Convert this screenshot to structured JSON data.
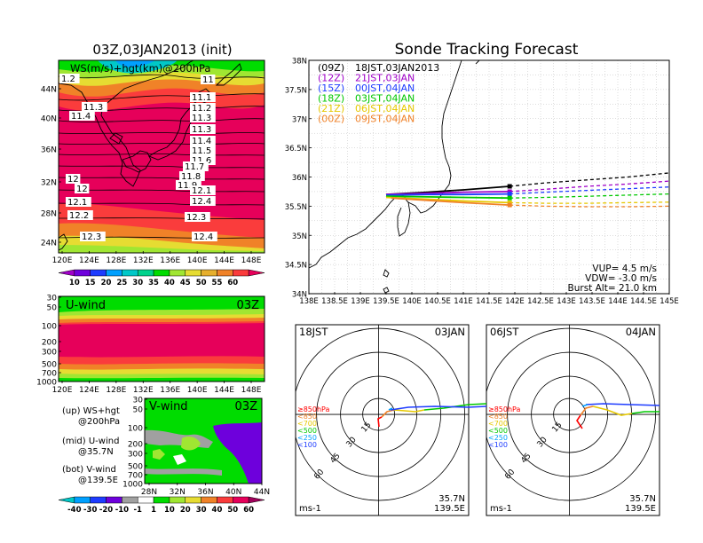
{
  "left_title": "03Z,03JAN2013 (init)",
  "right_title": "Sonde Tracking Forecast",
  "ws_map": {
    "label": "WS(m/s)+hgt(km)@200hPa",
    "lon_ticks": [
      "120E",
      "124E",
      "128E",
      "132E",
      "136E",
      "140E",
      "144E",
      "148E"
    ],
    "lat_ticks": [
      "44N",
      "40N",
      "36N",
      "32N",
      "28N",
      "24N"
    ],
    "height_labels": [
      {
        "text": "1.2"
      },
      {
        "text": "11"
      },
      {
        "text": "11.1"
      },
      {
        "text": "11.2"
      },
      {
        "text": "11.3"
      },
      {
        "text": "11.3"
      },
      {
        "text": "11.4"
      },
      {
        "text": "11.3"
      },
      {
        "text": "11.4"
      },
      {
        "text": "11.5"
      },
      {
        "text": "11.6"
      },
      {
        "text": "11.7"
      },
      {
        "text": "11.8"
      },
      {
        "text": "11.9"
      },
      {
        "text": "12"
      },
      {
        "text": "12"
      },
      {
        "text": "12.1"
      },
      {
        "text": "12.1"
      },
      {
        "text": "12.2"
      },
      {
        "text": "12.3"
      },
      {
        "text": "12.3"
      },
      {
        "text": "12.4"
      },
      {
        "text": "12.4"
      }
    ],
    "colorbar_ticks": [
      "10",
      "15",
      "20",
      "25",
      "30",
      "35",
      "40",
      "45",
      "50",
      "55",
      "60"
    ],
    "colorbar_colors": [
      "#a000c8",
      "#6e00dc",
      "#1e3cff",
      "#00a0ff",
      "#00c8c8",
      "#00d28c",
      "#00dc00",
      "#a0e632",
      "#e6dc32",
      "#e6af2d",
      "#f08228",
      "#fa3c3c",
      "#e6005a"
    ]
  },
  "u_wind": {
    "label": "U-wind",
    "time": "03Z",
    "p_ticks": [
      "30",
      "50",
      "100",
      "200",
      "300",
      "500",
      "700",
      "1000"
    ],
    "lon_ticks": [
      "120E",
      "124E",
      "128E",
      "132E",
      "136E",
      "140E",
      "144E",
      "148E"
    ]
  },
  "v_wind": {
    "label": "V-wind",
    "time": "03Z",
    "p_ticks": [
      "30",
      "50",
      "100",
      "200",
      "300",
      "500",
      "700",
      "1000"
    ],
    "lat_ticks": [
      "28N",
      "32N",
      "36N",
      "40N",
      "44N"
    ],
    "colorbar_ticks": [
      "-40",
      "-30",
      "-20",
      "-10",
      "-1",
      "1",
      "10",
      "20",
      "30",
      "40",
      "50",
      "60"
    ],
    "colorbar_colors": [
      "#00c8c8",
      "#00a0ff",
      "#1e3cff",
      "#6e00dc",
      "#a0a0a0",
      "#ffffff",
      "#00dc00",
      "#a0e632",
      "#e6dc32",
      "#f08228",
      "#fa3c3c",
      "#e6005a",
      "#a0005a"
    ]
  },
  "left_notes": [
    {
      "a": "(up) WS+hgt",
      "b": "@200hPa"
    },
    {
      "a": "(mid) U-wind",
      "b": "@35.7N"
    },
    {
      "a": "(bot) V-wind",
      "b": "@139.5E"
    }
  ],
  "tracking": {
    "lon_ticks": [
      "138E",
      "138.5E",
      "139E",
      "139.5E",
      "140E",
      "140.5E",
      "141E",
      "141.5E",
      "142E",
      "142.5E",
      "143E",
      "143.5E",
      "144E",
      "144.5E",
      "145E"
    ],
    "lat_ticks": [
      "38N",
      "37.5N",
      "37N",
      "36.5N",
      "36N",
      "35.5N",
      "35N",
      "34.5N",
      "34N"
    ],
    "legend": [
      {
        "code": "(09Z)",
        "time": "18JST,03JAN2013",
        "color": "#000000"
      },
      {
        "code": "(12Z)",
        "time": "21JST,03JAN",
        "color": "#a000c8"
      },
      {
        "code": "(15Z)",
        "time": "00JST,04JAN",
        "color": "#1e3cff"
      },
      {
        "code": "(18Z)",
        "time": "03JST,04JAN",
        "color": "#00c800"
      },
      {
        "code": "(21Z)",
        "time": "06JST,04JAN",
        "color": "#e6c800"
      },
      {
        "code": "(00Z)",
        "time": "09JST,04JAN",
        "color": "#f08228"
      }
    ],
    "vup": "VUP=  4.5 m/s",
    "vdw": "VDW= -3.0 m/s",
    "burst": "Burst Alt= 21.0 km"
  },
  "chart_data": [
    {
      "type": "line",
      "title": "Sonde Tracking Forecast",
      "xlim": [
        138,
        145
      ],
      "ylim": [
        34,
        38
      ],
      "launch": [
        139.5,
        35.7
      ],
      "series": [
        {
          "name": "(09Z) 18JST,03JAN2013",
          "burst": [
            141.9,
            35.84
          ],
          "x": [
            139.5,
            140.3,
            141.0,
            141.9,
            142.6,
            143.4,
            144.2,
            145.0
          ],
          "y": [
            35.7,
            35.74,
            35.78,
            35.84,
            35.9,
            35.95,
            36.0,
            36.07
          ]
        },
        {
          "name": "(12Z) 21JST,03JAN",
          "burst": [
            141.9,
            35.75
          ],
          "x": [
            139.5,
            140.3,
            141.0,
            141.9,
            142.6,
            143.4,
            144.2,
            145.0
          ],
          "y": [
            35.7,
            35.72,
            35.74,
            35.75,
            35.79,
            35.84,
            35.88,
            35.93
          ]
        },
        {
          "name": "(15Z) 00JST,04JAN",
          "burst": [
            141.9,
            35.71
          ],
          "x": [
            139.5,
            140.3,
            141.0,
            141.9,
            142.6,
            143.4,
            144.2,
            145.0
          ],
          "y": [
            35.69,
            35.7,
            35.7,
            35.71,
            35.74,
            35.77,
            35.8,
            35.83
          ]
        },
        {
          "name": "(18Z) 03JST,04JAN",
          "burst": [
            141.9,
            35.64
          ],
          "x": [
            139.5,
            140.3,
            141.0,
            141.9,
            142.6,
            143.4,
            144.2,
            145.0
          ],
          "y": [
            35.67,
            35.66,
            35.65,
            35.64,
            35.65,
            35.67,
            35.69,
            35.71
          ]
        },
        {
          "name": "(21Z) 06JST,04JAN",
          "burst": [
            141.9,
            35.56
          ],
          "x": [
            139.5,
            140.3,
            141.0,
            141.9,
            142.6,
            143.4,
            144.2,
            145.0
          ],
          "y": [
            35.65,
            35.62,
            35.59,
            35.56,
            35.55,
            35.55,
            35.56,
            35.57
          ]
        },
        {
          "name": "(00Z) 09JST,04JAN",
          "burst": [
            141.9,
            35.52
          ],
          "x": [
            139.6,
            140.3,
            141.0,
            141.9,
            142.6,
            143.4,
            144.2,
            145.0
          ],
          "y": [
            35.64,
            35.6,
            35.56,
            35.52,
            35.5,
            35.49,
            35.49,
            35.5
          ]
        }
      ]
    }
  ],
  "hodographs": [
    {
      "time": "18JST",
      "date": "03JAN",
      "lat": "35.7N",
      "lon": "139.5E",
      "unit": "ms-1",
      "ring_labels": [
        "15",
        "30",
        "45",
        "60"
      ],
      "levels": [
        {
          "text": "≥850hPa",
          "color": "#ff0000"
        },
        {
          "text": "<850",
          "color": "#f08228"
        },
        {
          "text": "<700",
          "color": "#e6c800"
        },
        {
          "text": "<500",
          "color": "#00c800"
        },
        {
          "text": "<250",
          "color": "#00a0ff"
        },
        {
          "text": "<100",
          "color": "#1e3cff"
        }
      ]
    },
    {
      "time": "06JST",
      "date": "04JAN",
      "lat": "35.7N",
      "lon": "139.5E",
      "unit": "ms-1",
      "ring_labels": [
        "15",
        "30",
        "45",
        "60"
      ],
      "levels": [
        {
          "text": "≥850hPa",
          "color": "#ff0000"
        },
        {
          "text": "<850",
          "color": "#f08228"
        },
        {
          "text": "<700",
          "color": "#e6c800"
        },
        {
          "text": "<500",
          "color": "#00c800"
        },
        {
          "text": "<250",
          "color": "#00a0ff"
        },
        {
          "text": "<100",
          "color": "#1e3cff"
        }
      ]
    }
  ]
}
